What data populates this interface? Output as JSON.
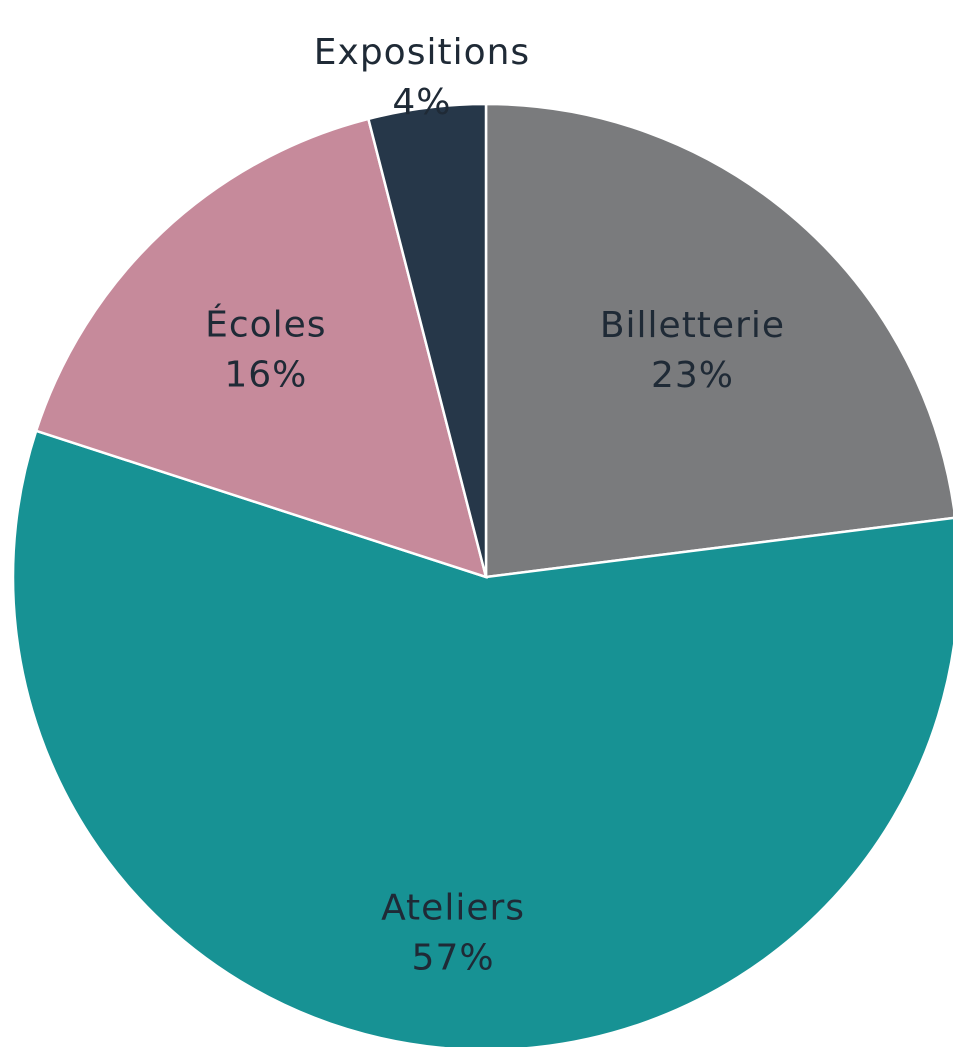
{
  "chart_data": {
    "type": "pie",
    "start_angle_deg": 0,
    "direction": "clockwise",
    "legend": "none",
    "slices": [
      {
        "label": "Billetterie",
        "value": 23,
        "value_label": "23%",
        "color": "#7a7b7d"
      },
      {
        "label": "Ateliers",
        "value": 57,
        "value_label": "57%",
        "color": "#179294"
      },
      {
        "label": "Écoles",
        "value": 16,
        "value_label": "16%",
        "color": "#c68a9b"
      },
      {
        "label": "Expositions",
        "value": 4,
        "value_label": "4%",
        "color": "#263749"
      }
    ]
  }
}
